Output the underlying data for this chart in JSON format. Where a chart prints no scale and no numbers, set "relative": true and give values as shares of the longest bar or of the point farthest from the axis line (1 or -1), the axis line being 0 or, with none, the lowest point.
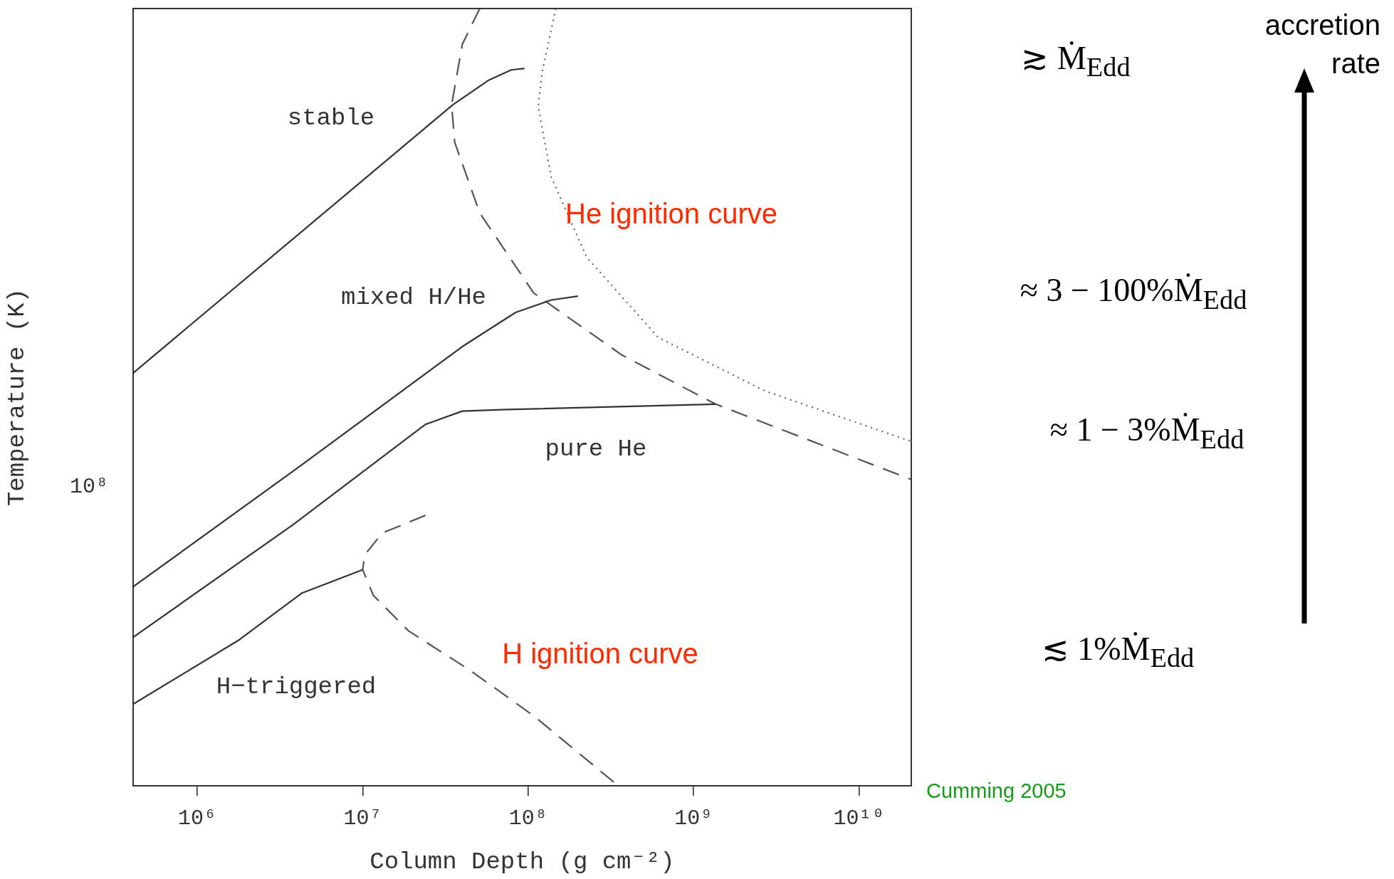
{
  "chart_data": {
    "type": "line",
    "xlabel": "Column Depth (g cm⁻²)",
    "ylabel": "Temperature (K)",
    "log": "x",
    "marker": "none",
    "relative": true,
    "xlim": [
      410000,
      20700000000
    ],
    "xticks": [
      {
        "value": 1000000,
        "label": "10⁶"
      },
      {
        "value": 10000000,
        "label": "10⁷"
      },
      {
        "value": 100000000,
        "label": "10⁸"
      },
      {
        "value": 1000000000,
        "label": "10⁹"
      },
      {
        "value": 10000000000,
        "label": "10¹⁰"
      }
    ],
    "series": [
      {
        "x": [
          410000,
          35000000,
          58000000,
          79000000,
          95000000
        ],
        "values": [
          0.531,
          0.876,
          0.908,
          0.921,
          0.923
        ],
        "color": "#333333",
        "line_style": "solid"
      },
      {
        "x": [
          410000,
          4100000,
          40000000,
          84000000,
          138000000,
          200000000
        ],
        "values": [
          0.256,
          0.41,
          0.565,
          0.609,
          0.625,
          0.63
        ],
        "color": "#333333",
        "line_style": "solid"
      },
      {
        "x": [
          410000,
          3800000,
          24000000,
          40000000,
          74000000,
          1360000000
        ],
        "values": [
          0.191,
          0.336,
          0.465,
          0.482,
          0.484,
          0.491
        ],
        "color": "#333333",
        "line_style": "solid"
      },
      {
        "x": [
          410000,
          1800000,
          4300000,
          10000000
        ],
        "values": [
          0.105,
          0.188,
          0.248,
          0.278
        ],
        "color": "#333333",
        "line_style": "solid"
      },
      {
        "x": [
          51000000,
          40000000,
          34500000,
          36000000,
          51000000,
          108000000,
          370000000,
          1360000000,
          20700000000
        ],
        "values": [
          1,
          0.954,
          0.876,
          0.828,
          0.737,
          0.634,
          0.554,
          0.491,
          0.394
        ],
        "color": "#555555",
        "line_style": "dashed"
      },
      {
        "x": [
          147000000,
          122000000,
          115000000,
          138000000,
          226000000,
          610000000,
          2700000000,
          20700000000
        ],
        "values": [
          1,
          0.92,
          0.874,
          0.783,
          0.68,
          0.577,
          0.508,
          0.443
        ],
        "color": "#666666",
        "line_style": "dotted"
      },
      {
        "x": [
          24000000,
          13100000,
          10300000,
          10000000,
          11600000,
          19000000,
          45000000,
          108000000,
          350000000
        ],
        "values": [
          0.348,
          0.325,
          0.297,
          0.278,
          0.245,
          0.199,
          0.148,
          0.09,
          0
        ],
        "color": "#555555",
        "line_style": "dashed"
      }
    ],
    "annotations": [
      "stable",
      "mixed H/He",
      "pure He",
      "H−triggered",
      "He ignition curve",
      "H ignition curve",
      "10⁸",
      "Cumming 2005",
      "accretion rate",
      "≳ Ṁ$_{Edd}$",
      "≈ 3 − 100%Ṁ$_{Edd}$",
      "≈ 1 − 3%Ṁ$_{Edd}$",
      "≲ 1%Ṁ$_{Edd}$"
    ]
  }
}
